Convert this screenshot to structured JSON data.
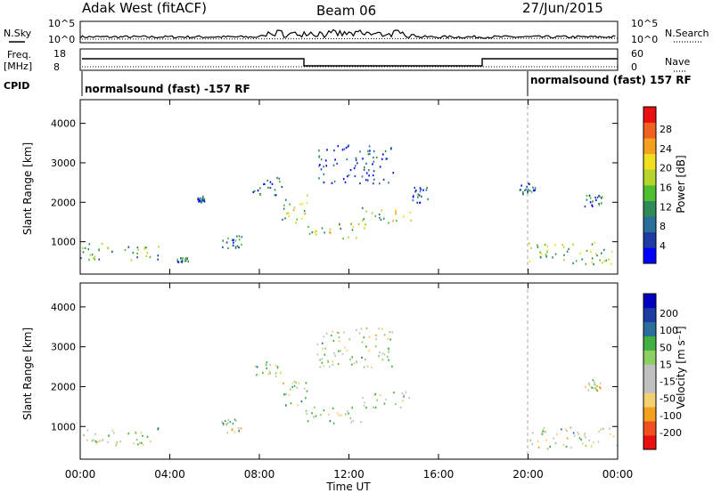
{
  "header": {
    "title": "Adak West (fitACF)",
    "beam": "Beam 06",
    "date": "27/Jun/2015"
  },
  "top_panels": {
    "nsky_label": "N.Sky",
    "nsearch_label": "N.Search",
    "noise_ticks": [
      "10^5",
      "10^0"
    ],
    "freq_label": "Freq.",
    "freq_unit": "[MHz]",
    "freq_ticks": [
      "18",
      "8"
    ],
    "nave_label": "Nave",
    "nave_ticks": [
      "60",
      "0"
    ],
    "cpid_label": "CPID",
    "cpid_segments": [
      {
        "text": "normalsound (fast) -157 RF",
        "start_hour": 0
      },
      {
        "text": "normalsound (fast) 157 RF",
        "start_hour": 20
      }
    ]
  },
  "x_axis": {
    "label": "Time UT",
    "ticks": [
      "00:00",
      "04:00",
      "08:00",
      "12:00",
      "16:00",
      "20:00",
      "00:00"
    ],
    "range_hours": [
      0,
      24
    ]
  },
  "chart_data": [
    {
      "type": "heatmap",
      "name": "power",
      "ylabel": "Slant Range [km]",
      "y_ticks": [
        "4000",
        "3000",
        "2000",
        "1000"
      ],
      "ylim": [
        180,
        4600
      ],
      "xlim_hours": [
        0,
        24
      ],
      "colorbar": {
        "label": "Power [dB]",
        "ticks": [
          "28",
          "24",
          "20",
          "16",
          "12",
          "8",
          "4"
        ],
        "colors": [
          "#0000ff",
          "#1c3ca4",
          "#2a6e9a",
          "#2e8b57",
          "#4fbf30",
          "#b6d42a",
          "#f0e020",
          "#f5a020",
          "#f06020",
          "#e81010"
        ]
      },
      "regions": [
        {
          "t0": 0.0,
          "t1": 3.6,
          "r0": 550,
          "r1": 1000,
          "level": 0.35
        },
        {
          "t0": 4.3,
          "t1": 4.8,
          "r0": 500,
          "r1": 620,
          "level": 0.3
        },
        {
          "t0": 5.2,
          "t1": 5.6,
          "r0": 2000,
          "r1": 2200,
          "level": 0.2
        },
        {
          "t0": 6.3,
          "t1": 7.2,
          "r0": 850,
          "r1": 1200,
          "level": 0.2
        },
        {
          "t0": 7.6,
          "t1": 9.0,
          "r0": 2200,
          "r1": 2650,
          "level": 0.25
        },
        {
          "t0": 9.0,
          "t1": 10.2,
          "r0": 1500,
          "r1": 2200,
          "level": 0.5
        },
        {
          "t0": 10.0,
          "t1": 12.8,
          "r0": 1100,
          "r1": 1500,
          "level": 0.55
        },
        {
          "t0": 12.5,
          "t1": 14.8,
          "r0": 1500,
          "r1": 1900,
          "level": 0.5
        },
        {
          "t0": 10.5,
          "t1": 14.0,
          "r0": 2500,
          "r1": 3500,
          "level": 0.15
        },
        {
          "t0": 14.8,
          "t1": 15.5,
          "r0": 2000,
          "r1": 2400,
          "level": 0.2
        },
        {
          "t0": 19.6,
          "t1": 20.3,
          "r0": 2200,
          "r1": 2500,
          "level": 0.2
        },
        {
          "t0": 20.0,
          "t1": 24.0,
          "r0": 450,
          "r1": 1000,
          "level": 0.45
        },
        {
          "t0": 22.5,
          "t1": 23.3,
          "r0": 1900,
          "r1": 2200,
          "level": 0.25
        }
      ]
    },
    {
      "type": "heatmap",
      "name": "velocity",
      "ylabel": "Slant Range [km]",
      "y_ticks": [
        "4000",
        "3000",
        "2000",
        "1000"
      ],
      "ylim": [
        180,
        4600
      ],
      "xlim_hours": [
        0,
        24
      ],
      "colorbar": {
        "label": "Velocity [m s⁻¹]",
        "ticks": [
          "200",
          "100",
          "50",
          "15",
          "-15",
          "-50",
          "-100",
          "-200"
        ],
        "colors": [
          "#e81010",
          "#f05020",
          "#f5a020",
          "#f5d070",
          "#c0c0c0",
          "#c0c0c0",
          "#8bd060",
          "#40b040",
          "#2a6e9a",
          "#1c3ca4",
          "#0000c0"
        ]
      },
      "regions": [
        {
          "t0": 0.0,
          "t1": 3.6,
          "r0": 550,
          "r1": 1000,
          "level": 0.5
        },
        {
          "t0": 6.3,
          "t1": 7.2,
          "r0": 850,
          "r1": 1200,
          "level": 0.5
        },
        {
          "t0": 7.6,
          "t1": 9.0,
          "r0": 2200,
          "r1": 2650,
          "level": 0.5
        },
        {
          "t0": 9.0,
          "t1": 10.2,
          "r0": 1500,
          "r1": 2200,
          "level": 0.5
        },
        {
          "t0": 10.0,
          "t1": 12.8,
          "r0": 1100,
          "r1": 1500,
          "level": 0.5
        },
        {
          "t0": 12.5,
          "t1": 14.8,
          "r0": 1500,
          "r1": 1900,
          "level": 0.55
        },
        {
          "t0": 10.5,
          "t1": 14.0,
          "r0": 2500,
          "r1": 3500,
          "level": 0.5
        },
        {
          "t0": 20.0,
          "t1": 24.0,
          "r0": 450,
          "r1": 1000,
          "level": 0.5
        },
        {
          "t0": 22.5,
          "t1": 23.3,
          "r0": 1900,
          "r1": 2200,
          "level": 0.45
        }
      ]
    }
  ]
}
